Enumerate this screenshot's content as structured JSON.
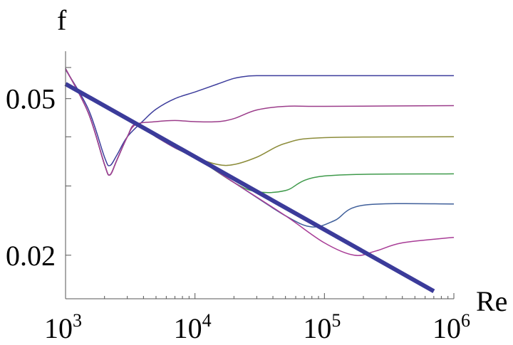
{
  "chart_data": {
    "type": "line",
    "title": "",
    "xlabel": "Re",
    "ylabel": "f",
    "xscale": "log",
    "yscale": "log",
    "xlim": [
      1000,
      1000000
    ],
    "ylim": [
      0.0155,
      0.066
    ],
    "grid": false,
    "x_ticks": [
      {
        "value": 1000,
        "base": "10",
        "exp": "3"
      },
      {
        "value": 10000,
        "base": "10",
        "exp": "4"
      },
      {
        "value": 100000,
        "base": "10",
        "exp": "5"
      },
      {
        "value": 1000000,
        "base": "10",
        "exp": "6"
      }
    ],
    "y_ticks": [
      {
        "value": 0.05,
        "label": "0.05"
      },
      {
        "value": 0.02,
        "label": "0.02"
      }
    ],
    "series": [
      {
        "color": "#3b3b9a",
        "width": 6,
        "x": [
          1000,
          700000
        ],
        "y": [
          0.0545,
          0.0162
        ]
      },
      {
        "color": "#3d3d9c",
        "width": 1.5,
        "x": [
          1000,
          1500,
          2000,
          2200,
          2500,
          3000,
          4000,
          5000,
          7000,
          10000,
          15000,
          20000,
          25000,
          30000,
          50000,
          100000,
          1000000
        ],
        "y": [
          0.0593,
          0.047,
          0.0355,
          0.0338,
          0.036,
          0.04,
          0.044,
          0.047,
          0.05,
          0.052,
          0.0545,
          0.0563,
          0.057,
          0.0572,
          0.0572,
          0.0572,
          0.0572
        ]
      },
      {
        "color": "#9b3c8a",
        "width": 1.5,
        "x": [
          1000,
          1500,
          2000,
          2200,
          2500,
          3000,
          3500,
          5000,
          7000,
          10000,
          15000,
          20000,
          30000,
          50000,
          100000,
          1000000
        ],
        "y": [
          0.0596,
          0.046,
          0.034,
          0.032,
          0.035,
          0.04,
          0.043,
          0.0437,
          0.044,
          0.0437,
          0.0437,
          0.0445,
          0.0468,
          0.0478,
          0.0478,
          0.048
        ]
      },
      {
        "color": "#8c8c3a",
        "width": 1.5,
        "x": [
          1000,
          1500,
          2000,
          2200,
          2500,
          3000,
          3500,
          5000,
          7000,
          10000,
          15000,
          20000,
          30000,
          50000,
          100000,
          1000000
        ],
        "y": [
          0.0596,
          0.046,
          0.034,
          0.032,
          0.035,
          0.04,
          0.043,
          0.04,
          0.0375,
          0.0355,
          0.034,
          0.034,
          0.0355,
          0.0385,
          0.0398,
          0.04
        ]
      },
      {
        "color": "#3f9a4b",
        "width": 1.5,
        "x": [
          1000,
          1500,
          2000,
          2200,
          2500,
          3000,
          3500,
          5000,
          7000,
          10000,
          20000,
          30000,
          50000,
          100000,
          1000000
        ],
        "y": [
          0.0596,
          0.046,
          0.034,
          0.032,
          0.035,
          0.04,
          0.043,
          0.04,
          0.0375,
          0.0355,
          0.0306,
          0.029,
          0.0292,
          0.0318,
          0.0322
        ]
      },
      {
        "color": "#3f5f9a",
        "width": 1.5,
        "x": [
          1000,
          1500,
          2000,
          2200,
          2500,
          3000,
          3500,
          5000,
          7000,
          10000,
          20000,
          50000,
          80000,
          120000,
          200000,
          1000000
        ],
        "y": [
          0.0596,
          0.046,
          0.034,
          0.032,
          0.035,
          0.04,
          0.043,
          0.04,
          0.0375,
          0.0355,
          0.0306,
          0.0252,
          0.0236,
          0.0245,
          0.0268,
          0.027
        ]
      },
      {
        "color": "#a83c96",
        "width": 1.5,
        "x": [
          1000,
          1500,
          2000,
          2200,
          2500,
          3000,
          3500,
          5000,
          7000,
          10000,
          20000,
          50000,
          100000,
          170000,
          250000,
          400000,
          1000000
        ],
        "y": [
          0.0596,
          0.046,
          0.034,
          0.032,
          0.035,
          0.04,
          0.043,
          0.04,
          0.0375,
          0.0355,
          0.0306,
          0.0252,
          0.0215,
          0.02,
          0.0205,
          0.0215,
          0.0222
        ]
      }
    ]
  }
}
